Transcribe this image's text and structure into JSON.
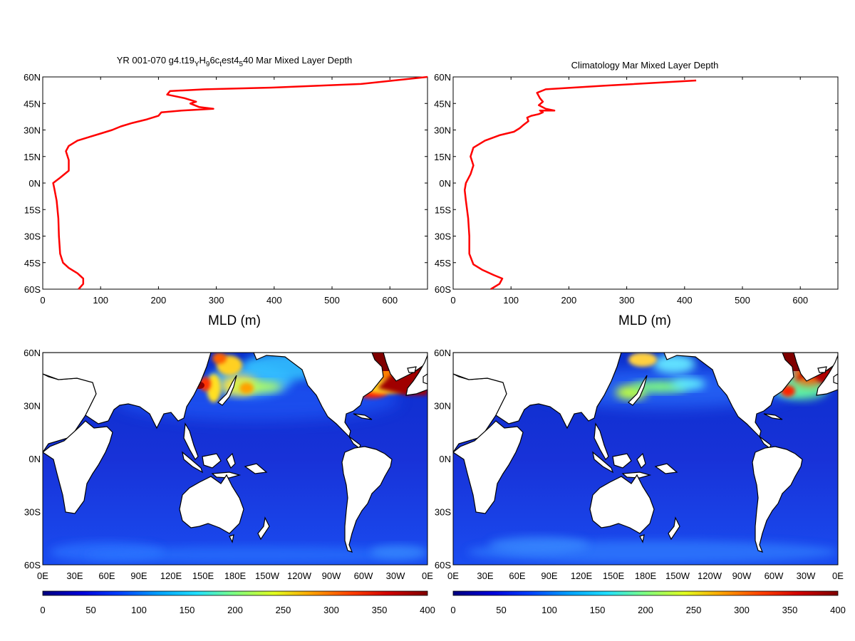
{
  "profiles": {
    "left_title": {
      "pre": "YR 001-070 g4.t19",
      "s1": "Y",
      "m1": "H",
      "s2": "9",
      "m2": "6c",
      "s3": "t",
      "m3": "est4",
      "s4": "5",
      "post": "40 Mar Mixed Layer Depth"
    },
    "right_title": "Climatology Mar Mixed Layer Depth",
    "xlabel": "MLD (m)",
    "y_ticks": [
      "60N",
      "45N",
      "30N",
      "15N",
      "0N",
      "15S",
      "30S",
      "45S",
      "60S"
    ],
    "x_ticks": [
      "0",
      "100",
      "200",
      "300",
      "400",
      "500",
      "600"
    ]
  },
  "maps": {
    "lat_ticks": [
      "60N",
      "30N",
      "0N",
      "30S",
      "60S"
    ],
    "lon_ticks": [
      "0E",
      "30E",
      "60E",
      "90E",
      "120E",
      "150E",
      "180E",
      "150W",
      "120W",
      "90W",
      "60W",
      "30W",
      "0E"
    ]
  },
  "colorbar": {
    "ticks": [
      "0",
      "50",
      "100",
      "150",
      "200",
      "250",
      "300",
      "350",
      "400"
    ],
    "colors": [
      "#00007f",
      "#0000d9",
      "#0040ff",
      "#00a0ff",
      "#20e0ff",
      "#7fff80",
      "#e0ff20",
      "#ffa000",
      "#ff4000",
      "#d00000",
      "#800000"
    ]
  },
  "chart_data": [
    {
      "type": "line",
      "title": "YR 001-070 g4.t19_Y H_9 6c_t est4_5 40 Mar Mixed Layer Depth",
      "xlabel": "MLD (m)",
      "ylabel": "",
      "xlim": [
        0,
        665
      ],
      "ylim": [
        -60,
        60
      ],
      "color": "#ff0000",
      "points": [
        [
          62,
          -60
        ],
        [
          70,
          -57
        ],
        [
          70,
          -54
        ],
        [
          60,
          -51
        ],
        [
          45,
          -48
        ],
        [
          35,
          -45
        ],
        [
          30,
          -40
        ],
        [
          28,
          -30
        ],
        [
          27,
          -20
        ],
        [
          24,
          -10
        ],
        [
          20,
          -3
        ],
        [
          18,
          0
        ],
        [
          30,
          3
        ],
        [
          45,
          7
        ],
        [
          45,
          13
        ],
        [
          40,
          18
        ],
        [
          45,
          21
        ],
        [
          60,
          24
        ],
        [
          80,
          26
        ],
        [
          100,
          28
        ],
        [
          120,
          30
        ],
        [
          135,
          32
        ],
        [
          155,
          34
        ],
        [
          180,
          36
        ],
        [
          200,
          38
        ],
        [
          205,
          40
        ],
        [
          240,
          41
        ],
        [
          295,
          42
        ],
        [
          270,
          43
        ],
        [
          255,
          45
        ],
        [
          265,
          46
        ],
        [
          245,
          48
        ],
        [
          215,
          50
        ],
        [
          220,
          52
        ],
        [
          280,
          53
        ],
        [
          400,
          54
        ],
        [
          550,
          56
        ],
        [
          665,
          60
        ]
      ]
    },
    {
      "type": "line",
      "title": "Climatology Mar Mixed Layer Depth",
      "xlabel": "MLD (m)",
      "ylabel": "",
      "xlim": [
        0,
        665
      ],
      "ylim": [
        -60,
        60
      ],
      "color": "#ff0000",
      "points": [
        [
          65,
          -60
        ],
        [
          80,
          -57
        ],
        [
          85,
          -54
        ],
        [
          70,
          -52
        ],
        [
          50,
          -49
        ],
        [
          35,
          -46
        ],
        [
          28,
          -40
        ],
        [
          28,
          -30
        ],
        [
          26,
          -20
        ],
        [
          22,
          -10
        ],
        [
          20,
          -4
        ],
        [
          22,
          0
        ],
        [
          30,
          5
        ],
        [
          35,
          10
        ],
        [
          30,
          15
        ],
        [
          35,
          20
        ],
        [
          55,
          24
        ],
        [
          80,
          27
        ],
        [
          105,
          29
        ],
        [
          115,
          31
        ],
        [
          122,
          33
        ],
        [
          130,
          35
        ],
        [
          128,
          37
        ],
        [
          135,
          38
        ],
        [
          148,
          39
        ],
        [
          155,
          40
        ],
        [
          150,
          41
        ],
        [
          175,
          41
        ],
        [
          160,
          42
        ],
        [
          148,
          44
        ],
        [
          155,
          46
        ],
        [
          150,
          48
        ],
        [
          145,
          51
        ],
        [
          160,
          53
        ],
        [
          260,
          55
        ],
        [
          420,
          58
        ]
      ]
    },
    {
      "type": "heatmap",
      "title": "",
      "xlabel": "",
      "ylabel": "",
      "xlim": [
        0,
        360
      ],
      "ylim": [
        -60,
        60
      ],
      "clim": [
        0,
        400
      ],
      "xticks": [
        "0E",
        "30E",
        "60E",
        "90E",
        "120E",
        "150E",
        "180E",
        "150W",
        "120W",
        "90W",
        "60W",
        "30W",
        "0E"
      ],
      "yticks": [
        "60N",
        "30N",
        "0N",
        "30S",
        "60S"
      ]
    },
    {
      "type": "heatmap",
      "title": "",
      "xlabel": "",
      "ylabel": "",
      "xlim": [
        0,
        360
      ],
      "ylim": [
        -60,
        60
      ],
      "clim": [
        0,
        400
      ],
      "xticks": [
        "0E",
        "30E",
        "60E",
        "90E",
        "120E",
        "150E",
        "180E",
        "150W",
        "120W",
        "90W",
        "60W",
        "30W",
        "0E"
      ],
      "yticks": [
        "60N",
        "30N",
        "0N",
        "30S",
        "60S"
      ]
    }
  ]
}
